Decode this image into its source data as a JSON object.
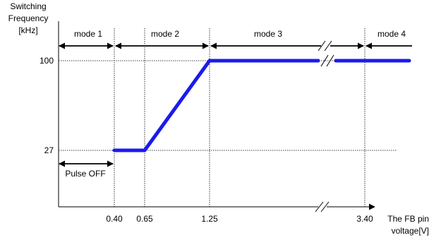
{
  "chart_data": {
    "type": "line",
    "ylabel": [
      "Switching",
      "Frequency",
      "[kHz]"
    ],
    "xlabel": [
      "The FB pin",
      "voltage[V]"
    ],
    "x_ticks": [
      "0.40",
      "0.65",
      "1.25",
      "3.40"
    ],
    "y_ticks": [
      "100",
      "27"
    ],
    "modes": [
      "mode 1",
      "mode 2",
      "mode 3",
      "mode 4"
    ],
    "pulse_off_label": "Pulse OFF",
    "x_axis_break": true,
    "series": [
      {
        "x": [
          0.4,
          0.65,
          1.25,
          3.8
        ],
        "y": [
          27,
          27,
          100,
          100
        ],
        "break_after_x": 1.25
      }
    ],
    "colors": {
      "series": "#1a1aee",
      "axis": "#000000",
      "guide": "#000000"
    }
  }
}
